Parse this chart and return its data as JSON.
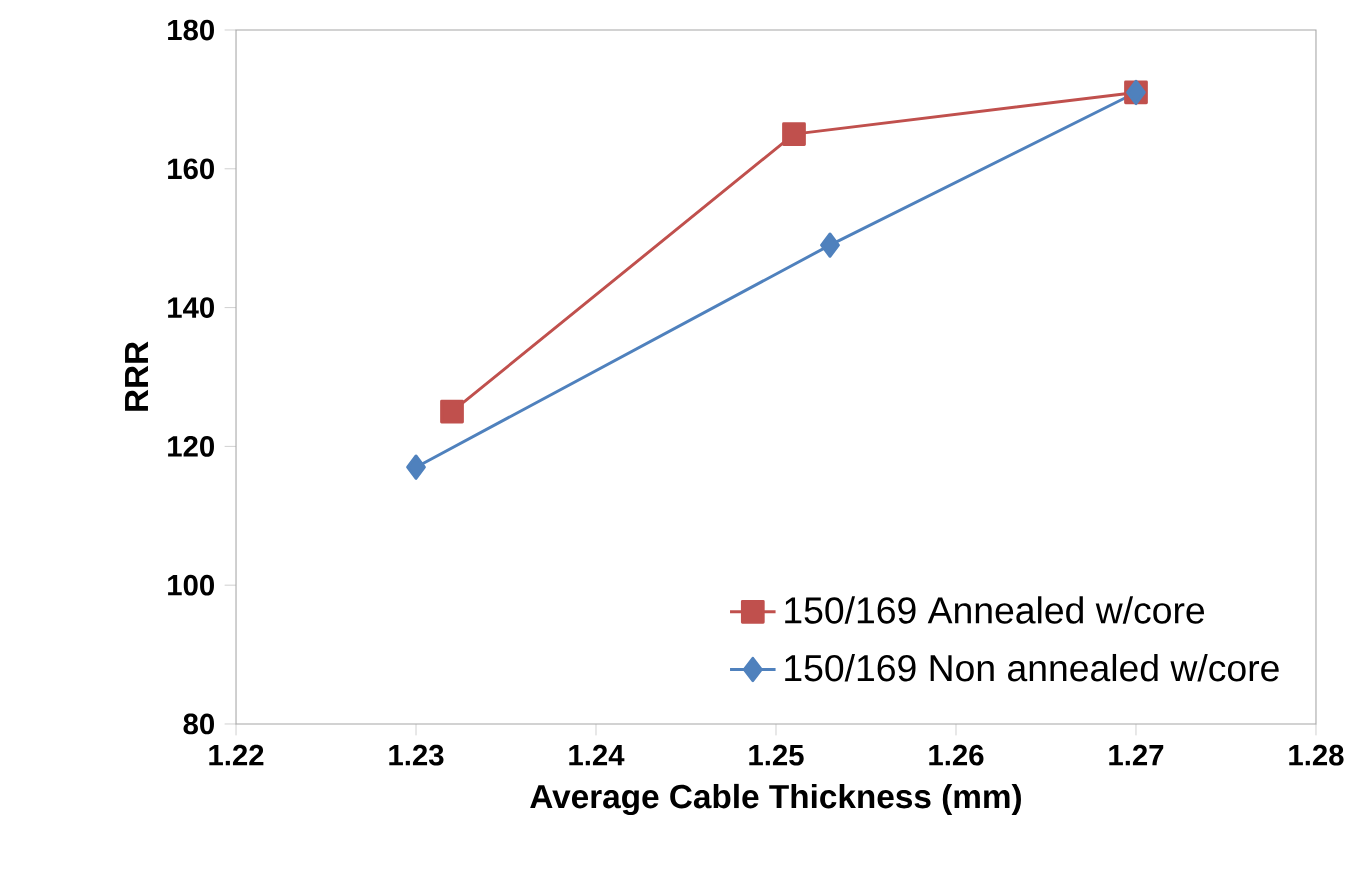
{
  "chart_data": {
    "type": "line",
    "xlabel": "Average  Cable Thickness (mm)",
    "ylabel": "RRR",
    "xlim": [
      1.22,
      1.28
    ],
    "xticks": [
      1.22,
      1.23,
      1.24,
      1.25,
      1.26,
      1.27,
      1.28
    ],
    "ylim": [
      80,
      180
    ],
    "yticks": [
      80,
      100,
      120,
      140,
      160,
      180
    ],
    "grid": false,
    "legend": "bottom right",
    "line_style": "solid",
    "series": [
      {
        "name": "150/169 Annealed w/core",
        "color": "#c0504d",
        "marker": "square",
        "x": [
          1.232,
          1.251,
          1.27
        ],
        "values": [
          125,
          165,
          171
        ]
      },
      {
        "name": "150/169 Non annealed w/core",
        "color": "#4f81bd",
        "marker": "diamond",
        "x": [
          1.23,
          1.253,
          1.27
        ],
        "values": [
          117,
          149,
          171
        ]
      }
    ]
  }
}
